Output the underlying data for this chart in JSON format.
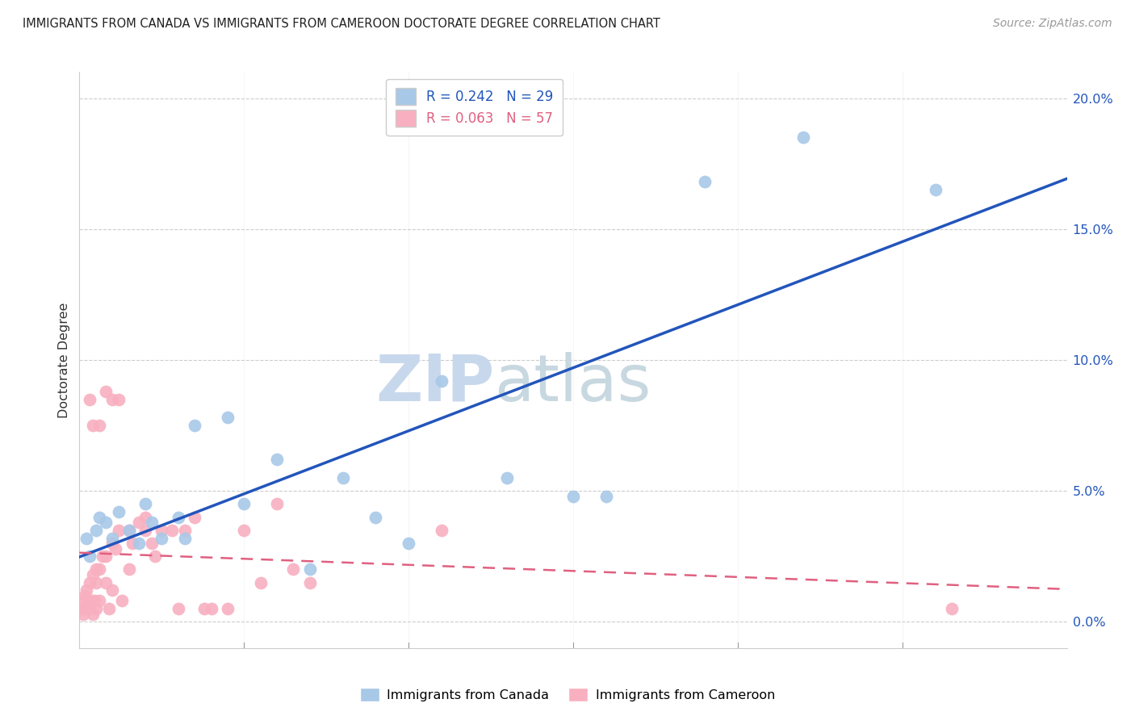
{
  "title": "IMMIGRANTS FROM CANADA VS IMMIGRANTS FROM CAMEROON DOCTORATE DEGREE CORRELATION CHART",
  "source": "Source: ZipAtlas.com",
  "ylabel": "Doctorate Degree",
  "canada_R": 0.242,
  "canada_N": 29,
  "cameroon_R": 0.063,
  "cameroon_N": 57,
  "canada_color": "#a8c8e8",
  "cameroon_color": "#f8b0c0",
  "canada_line_color": "#2255bb",
  "cameroon_line_color": "#e06080",
  "watermark_zip_color": "#ccd8e8",
  "watermark_atlas_color": "#c8d8e0",
  "xmin": 0.0,
  "xmax": 30.0,
  "ymin": -1.0,
  "ymax": 21.0,
  "ytick_vals": [
    0.0,
    5.0,
    10.0,
    15.0,
    20.0
  ],
  "xtick_labels_positions": [
    0,
    5,
    10,
    15,
    20,
    25,
    30
  ],
  "canada_x": [
    0.2,
    0.3,
    0.5,
    0.6,
    0.8,
    1.0,
    1.2,
    1.5,
    1.8,
    2.0,
    2.2,
    2.5,
    3.0,
    3.2,
    3.5,
    4.5,
    5.0,
    6.0,
    7.0,
    8.0,
    9.0,
    10.0,
    11.0,
    13.0,
    15.0,
    16.0,
    19.0,
    22.0,
    26.0
  ],
  "canada_y": [
    3.2,
    2.5,
    3.5,
    4.0,
    3.8,
    3.2,
    4.2,
    3.5,
    3.0,
    4.5,
    3.8,
    3.2,
    4.0,
    3.2,
    7.5,
    7.8,
    4.5,
    6.2,
    2.0,
    5.5,
    4.0,
    3.0,
    9.2,
    5.5,
    4.8,
    4.8,
    16.8,
    18.5,
    16.5
  ],
  "cameroon_x": [
    0.05,
    0.08,
    0.1,
    0.12,
    0.15,
    0.2,
    0.2,
    0.25,
    0.3,
    0.3,
    0.35,
    0.4,
    0.4,
    0.45,
    0.5,
    0.5,
    0.5,
    0.6,
    0.6,
    0.7,
    0.8,
    0.8,
    0.9,
    1.0,
    1.0,
    1.1,
    1.2,
    1.3,
    1.5,
    1.5,
    1.6,
    1.8,
    2.0,
    2.0,
    2.2,
    2.3,
    2.5,
    2.8,
    3.0,
    3.2,
    3.5,
    3.8,
    4.0,
    4.5,
    5.0,
    5.5,
    6.0,
    6.5,
    7.0,
    0.3,
    0.4,
    0.6,
    0.8,
    1.0,
    1.2,
    11.0,
    26.5
  ],
  "cameroon_y": [
    0.5,
    0.8,
    0.5,
    0.3,
    1.0,
    0.5,
    1.2,
    0.8,
    0.5,
    1.5,
    0.8,
    0.3,
    1.8,
    0.8,
    0.5,
    1.5,
    2.0,
    2.0,
    0.8,
    2.5,
    1.5,
    2.5,
    0.5,
    3.0,
    1.2,
    2.8,
    3.5,
    0.8,
    2.0,
    3.5,
    3.0,
    3.8,
    3.5,
    4.0,
    3.0,
    2.5,
    3.5,
    3.5,
    0.5,
    3.5,
    4.0,
    0.5,
    0.5,
    0.5,
    3.5,
    1.5,
    4.5,
    2.0,
    1.5,
    8.5,
    7.5,
    7.5,
    8.8,
    8.5,
    8.5,
    3.5,
    0.5
  ]
}
